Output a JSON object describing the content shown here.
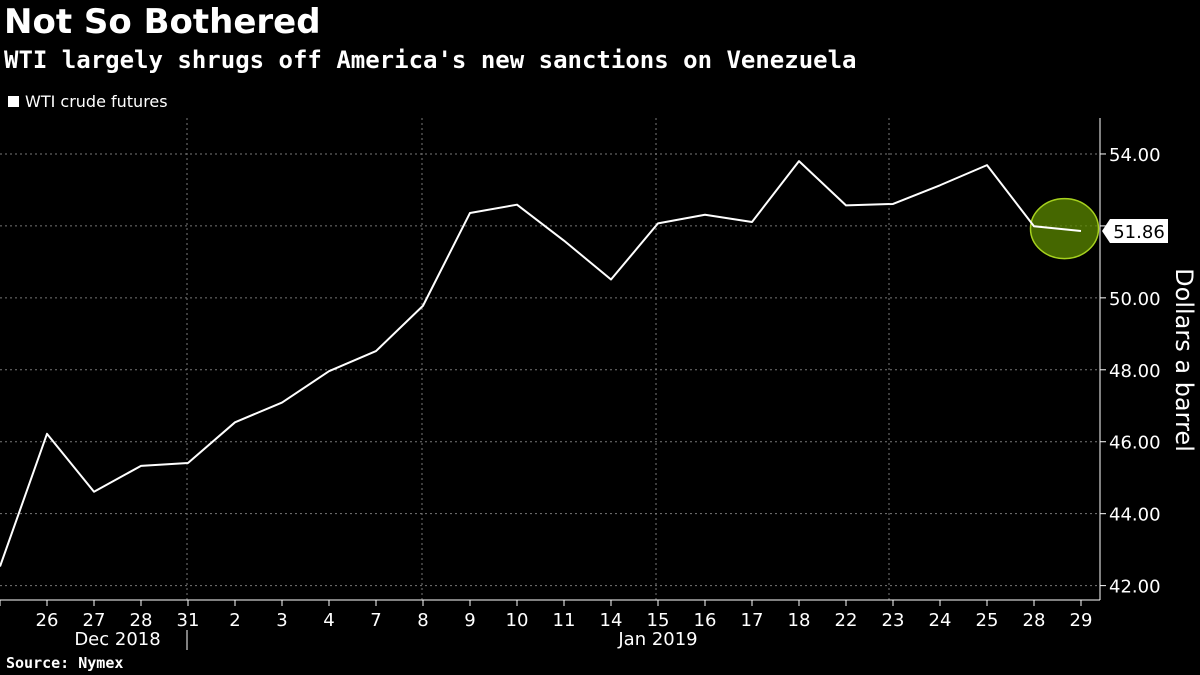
{
  "header": {
    "title": "Not So Bothered",
    "subtitle": "WTI largely shrugs off America's new sanctions on Venezuela"
  },
  "legend": {
    "label": "WTI crude futures"
  },
  "source": "Source: Nymex",
  "chart_data": {
    "type": "line",
    "categories": [
      "",
      "26",
      "27",
      "28",
      "31",
      "2",
      "3",
      "4",
      "7",
      "8",
      "9",
      "10",
      "11",
      "14",
      "15",
      "16",
      "17",
      "18",
      "22",
      "23",
      "24",
      "25",
      "28",
      "29"
    ],
    "month_labels": [
      {
        "label": "Dec 2018",
        "from": 1,
        "to": 4
      },
      {
        "label": "Jan 2019",
        "from": 5,
        "to": 23
      }
    ],
    "series": [
      {
        "name": "WTI crude futures",
        "values": [
          42.53,
          46.22,
          44.61,
          45.33,
          45.41,
          46.54,
          47.09,
          47.96,
          48.52,
          49.78,
          52.36,
          52.59,
          51.59,
          50.51,
          52.07,
          52.31,
          52.11,
          53.8,
          52.57,
          52.61,
          53.13,
          53.69,
          51.99,
          51.86
        ]
      }
    ],
    "ylabel": "Dollars a barrel",
    "ylim": [
      41.6,
      55.0
    ],
    "yticks": [
      42.0,
      44.0,
      46.0,
      48.0,
      50.0,
      52.0,
      54.0
    ],
    "ytick_labels": [
      "42.00",
      "44.00",
      "46.00",
      "48.00",
      "50.00",
      "",
      "54.00"
    ],
    "last_value_label": "51.86",
    "highlight_last": true,
    "grid": true,
    "colors": {
      "line": "#ffffff",
      "grid": "#777777",
      "highlight_fill": "#5c8a00",
      "highlight_stroke": "#a6d11e"
    }
  }
}
